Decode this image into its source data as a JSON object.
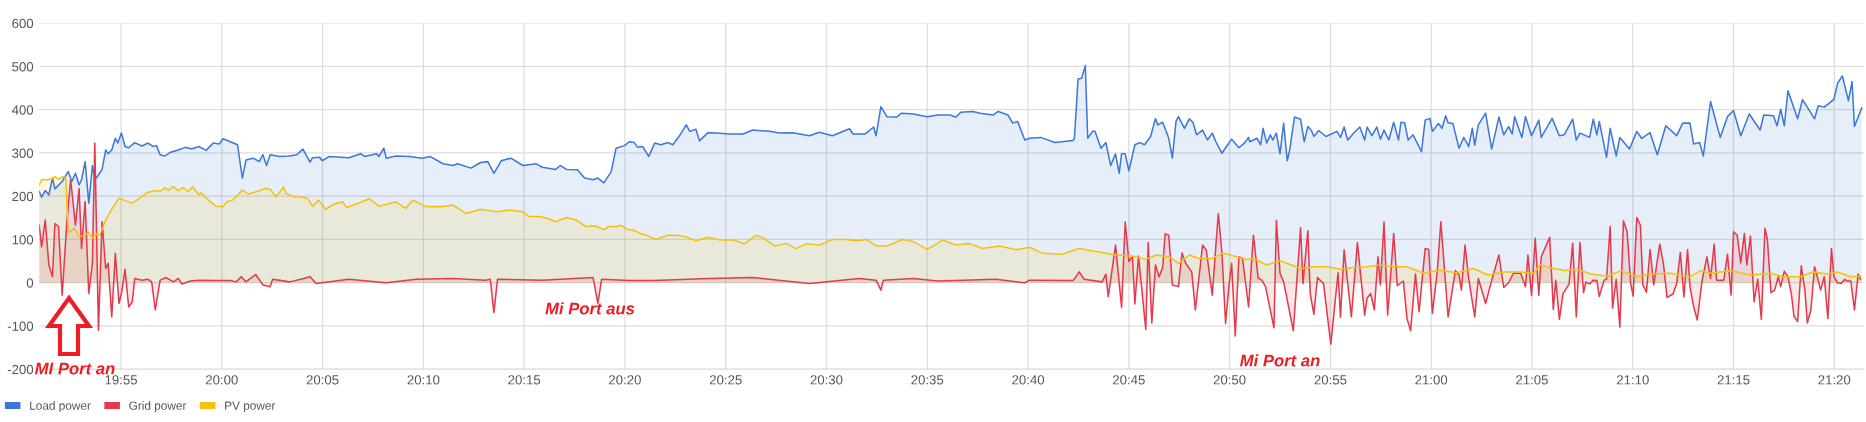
{
  "chart_data": {
    "type": "area",
    "xlim": [
      19.849,
      21.358
    ],
    "ylim": [
      -200,
      600
    ],
    "yticks": [
      -200,
      -100,
      0,
      100,
      200,
      300,
      400,
      500,
      600
    ],
    "xticks": [
      {
        "value": 19.9167,
        "label": "19:55"
      },
      {
        "value": 20,
        "label": "20:00"
      },
      {
        "value": 20.0833,
        "label": "20:05"
      },
      {
        "value": 20.1667,
        "label": "20:10"
      },
      {
        "value": 20.25,
        "label": "20:15"
      },
      {
        "value": 20.3333,
        "label": "20:20"
      },
      {
        "value": 20.4167,
        "label": "20:25"
      },
      {
        "value": 20.5,
        "label": "20:30"
      },
      {
        "value": 20.5833,
        "label": "20:35"
      },
      {
        "value": 20.6667,
        "label": "20:40"
      },
      {
        "value": 20.75,
        "label": "20:45"
      },
      {
        "value": 20.8333,
        "label": "20:50"
      },
      {
        "value": 20.9167,
        "label": "20:55"
      },
      {
        "value": 21,
        "label": "21:00"
      },
      {
        "value": 21.0833,
        "label": "21:05"
      },
      {
        "value": 21.1667,
        "label": "21:10"
      },
      {
        "value": 21.25,
        "label": "21:15"
      },
      {
        "value": 21.3333,
        "label": "21:20"
      }
    ],
    "grid": true,
    "legend": "bottom left",
    "marker": "none",
    "line_style": "solid",
    "annotations": [
      "MI Port an",
      "Mi Port aus",
      "Mi Port an"
    ],
    "series": [
      {
        "name": "Load power",
        "color": "#3c78d8",
        "x": [
          19.849,
          19.851,
          19.854,
          19.857,
          19.86,
          19.862,
          19.868,
          19.872,
          19.873,
          19.876,
          19.879,
          19.882,
          19.884,
          19.887,
          19.89,
          19.893,
          19.895,
          19.898,
          19.901,
          19.904,
          19.906,
          19.909,
          19.912,
          19.914,
          19.917,
          19.92,
          19.923,
          19.928,
          19.934,
          19.939,
          19.943,
          19.946,
          19.949,
          19.953,
          19.957,
          19.964,
          19.97,
          19.975,
          19.981,
          19.987,
          19.993,
          19.998,
          20.001,
          20.007,
          20.013,
          20.017,
          20.02,
          20.026,
          20.031,
          20.034,
          20.037,
          20.04,
          20.048,
          20.056,
          20.062,
          20.067,
          20.073,
          20.075,
          20.081,
          20.083,
          20.089,
          20.105,
          20.115,
          20.118,
          20.128,
          20.13,
          20.134,
          20.136,
          20.144,
          20.155,
          20.166,
          20.172,
          20.183,
          20.191,
          20.195,
          20.206,
          20.214,
          20.22,
          20.225,
          20.231,
          20.239,
          20.249,
          20.26,
          20.265,
          20.276,
          20.28,
          20.285,
          20.294,
          20.3,
          20.307,
          20.311,
          20.316,
          20.322,
          20.326,
          20.333,
          20.337,
          20.341,
          20.344,
          20.348,
          20.353,
          20.358,
          20.363,
          20.369,
          20.373,
          20.379,
          20.384,
          20.387,
          20.392,
          20.395,
          20.402,
          20.409,
          20.42,
          20.431,
          20.439,
          20.453,
          20.461,
          20.472,
          20.486,
          20.494,
          20.505,
          20.519,
          20.522,
          20.532,
          20.539,
          20.541,
          20.545,
          20.55,
          20.558,
          20.562,
          20.572,
          20.583,
          20.592,
          20.602,
          20.607,
          20.611,
          20.621,
          20.627,
          20.638,
          20.642,
          20.65,
          20.654,
          20.658,
          20.664,
          20.668,
          20.677,
          20.689,
          20.704,
          20.705,
          20.708,
          20.711,
          20.714,
          20.716,
          20.72,
          20.722,
          20.727,
          20.731,
          20.735,
          20.739,
          20.742,
          20.744,
          20.747,
          20.75,
          20.755,
          20.759,
          20.763,
          20.768,
          20.772,
          20.774,
          20.778,
          20.783,
          20.786,
          20.789,
          20.791,
          20.796,
          20.8,
          20.803,
          20.806,
          20.811,
          20.815,
          20.819,
          20.822,
          20.827,
          20.83,
          20.835,
          20.841,
          20.846,
          20.849,
          20.85,
          20.856,
          20.859,
          20.861,
          20.864,
          20.867,
          20.869,
          20.872,
          20.875,
          20.878,
          20.881,
          20.883,
          20.887,
          20.892,
          20.895,
          20.898,
          20.901,
          20.903,
          20.907,
          20.913,
          20.922,
          20.925,
          20.928,
          20.931,
          20.936,
          20.941,
          20.945,
          20.947,
          20.951,
          20.955,
          20.958,
          20.961,
          20.965,
          20.969,
          20.973,
          20.975,
          20.978,
          20.981,
          20.985,
          20.992,
          20.995,
          20.999,
          21.001,
          21.006,
          21.009,
          21.012,
          21.014,
          21.018,
          21.023,
          21.027,
          21.031,
          21.034,
          21.036,
          21.039,
          21.045,
          21.05,
          21.056,
          21.06,
          21.064,
          21.067,
          21.069,
          21.075,
          21.078,
          21.083,
          21.089,
          21.091,
          21.1,
          21.106,
          21.11,
          21.117,
          21.12,
          21.123,
          21.131,
          21.134,
          21.137,
          21.139,
          21.145,
          21.148,
          21.153,
          21.156,
          21.164,
          21.17,
          21.174,
          21.181,
          21.187,
          21.194,
          21.203,
          21.208,
          21.214,
          21.217,
          21.222,
          21.225,
          21.231,
          21.239,
          21.245,
          21.25,
          21.256,
          21.263,
          21.272,
          21.275,
          21.283,
          21.286,
          21.289,
          21.292,
          21.295,
          21.303,
          21.307,
          21.311,
          21.317,
          21.32,
          21.325,
          21.333,
          21.336,
          21.34,
          21.345,
          21.348,
          21.35,
          21.356
        ],
        "values": [
          211,
          198,
          213,
          203,
          242,
          217,
          234,
          253,
          257,
          234,
          253,
          226,
          238,
          280,
          184,
          271,
          238,
          249,
          262,
          307,
          298,
          307,
          334,
          323,
          346,
          315,
          312,
          324,
          316,
          323,
          315,
          317,
          296,
          293,
          301,
          307,
          313,
          309,
          315,
          306,
          323,
          321,
          333,
          326,
          319,
          242,
          284,
          288,
          280,
          296,
          271,
          296,
          292,
          293,
          296,
          309,
          279,
          289,
          290,
          282,
          292,
          289,
          298,
          292,
          298,
          292,
          311,
          288,
          293,
          292,
          288,
          292,
          275,
          271,
          275,
          265,
          278,
          280,
          253,
          282,
          288,
          271,
          275,
          267,
          262,
          271,
          262,
          261,
          242,
          238,
          242,
          231,
          257,
          311,
          317,
          326,
          324,
          313,
          315,
          292,
          323,
          319,
          324,
          319,
          342,
          365,
          350,
          355,
          328,
          347,
          346,
          344,
          344,
          353,
          350,
          346,
          347,
          340,
          348,
          340,
          356,
          344,
          344,
          360,
          340,
          407,
          384,
          383,
          392,
          390,
          384,
          388,
          388,
          383,
          394,
          396,
          392,
          388,
          396,
          388,
          369,
          373,
          330,
          334,
          336,
          324,
          329,
          334,
          471,
          473,
          502,
          334,
          350,
          350,
          311,
          324,
          271,
          298,
          253,
          298,
          298,
          259,
          319,
          324,
          319,
          338,
          379,
          365,
          371,
          334,
          288,
          373,
          384,
          357,
          379,
          371,
          342,
          353,
          330,
          346,
          326,
          299,
          312,
          332,
          312,
          324,
          336,
          326,
          334,
          319,
          357,
          323,
          342,
          330,
          346,
          298,
          369,
          282,
          307,
          383,
          378,
          326,
          361,
          352,
          338,
          352,
          338,
          350,
          336,
          360,
          330,
          346,
          360,
          330,
          360,
          340,
          360,
          332,
          353,
          330,
          371,
          330,
          371,
          370,
          330,
          342,
          303,
          376,
          380,
          350,
          368,
          357,
          386,
          370,
          368,
          311,
          336,
          315,
          357,
          318,
          365,
          392,
          309,
          383,
          342,
          361,
          344,
          384,
          336,
          384,
          340,
          376,
          336,
          380,
          340,
          342,
          378,
          330,
          346,
          336,
          378,
          342,
          373,
          290,
          357,
          293,
          336,
          309,
          350,
          334,
          347,
          296,
          363,
          340,
          369,
          369,
          321,
          324,
          293,
          419,
          336,
          384,
          398,
          340,
          390,
          353,
          388,
          386,
          363,
          401,
          363,
          444,
          379,
          423,
          406,
          379,
          409,
          406,
          424,
          461,
          478,
          421,
          465,
          361,
          404
        ]
      },
      {
        "name": "Grid power",
        "color": "#e53a4b",
        "x": [
          19.849,
          19.851,
          19.854,
          19.857,
          19.86,
          19.862,
          19.865,
          19.868,
          19.872,
          19.875,
          19.879,
          19.882,
          19.884,
          19.887,
          19.89,
          19.893,
          19.895,
          19.898,
          19.901,
          19.904,
          19.906,
          19.909,
          19.912,
          19.915,
          19.917,
          19.92,
          19.923,
          19.926,
          19.928,
          19.934,
          19.939,
          19.942,
          19.945,
          19.949,
          19.954,
          19.96,
          19.964,
          19.967,
          19.974,
          19.982,
          19.993,
          20.007,
          20.012,
          20.016,
          20.02,
          20.028,
          20.034,
          20.04,
          20.042,
          20.056,
          20.067,
          20.073,
          20.078,
          20.105,
          20.136,
          20.161,
          20.191,
          20.218,
          20.222,
          20.225,
          20.228,
          20.265,
          20.307,
          20.311,
          20.314,
          20.337,
          20.357,
          20.403,
          20.439,
          20.486,
          20.527,
          20.541,
          20.545,
          20.547,
          20.572,
          20.592,
          20.607,
          20.64,
          20.664,
          20.668,
          20.704,
          20.709,
          20.713,
          20.728,
          20.731,
          20.733,
          20.739,
          20.744,
          20.747,
          20.75,
          20.753,
          20.755,
          20.758,
          20.764,
          20.766,
          20.769,
          20.772,
          20.775,
          20.778,
          20.78,
          20.783,
          20.786,
          20.791,
          20.794,
          20.797,
          20.802,
          20.805,
          20.811,
          20.814,
          20.819,
          20.822,
          20.824,
          20.827,
          20.83,
          20.833,
          20.835,
          20.838,
          20.841,
          20.844,
          20.849,
          20.853,
          20.857,
          20.86,
          20.863,
          20.87,
          20.872,
          20.875,
          20.878,
          20.886,
          20.892,
          20.894,
          20.898,
          20.9,
          20.903,
          20.906,
          20.911,
          20.917,
          20.923,
          20.925,
          20.928,
          20.934,
          20.939,
          20.945,
          20.947,
          20.95,
          20.953,
          20.956,
          20.958,
          20.961,
          20.964,
          20.967,
          20.969,
          20.972,
          20.977,
          20.98,
          20.983,
          20.987,
          20.99,
          20.995,
          20.998,
          21.001,
          21.005,
          21.008,
          21.014,
          21.02,
          21.023,
          21.025,
          21.028,
          21.031,
          21.036,
          21.039,
          21.045,
          21.05,
          21.056,
          21.06,
          21.064,
          21.068,
          21.074,
          21.078,
          21.08,
          21.083,
          21.086,
          21.089,
          21.091,
          21.098,
          21.101,
          21.103,
          21.106,
          21.109,
          21.114,
          21.117,
          21.12,
          21.123,
          21.126,
          21.128,
          21.131,
          21.134,
          21.137,
          21.139,
          21.143,
          21.145,
          21.148,
          21.15,
          21.153,
          21.156,
          21.159,
          21.162,
          21.165,
          21.167,
          21.17,
          21.173,
          21.175,
          21.178,
          21.181,
          21.184,
          21.189,
          21.192,
          21.195,
          21.2,
          21.203,
          21.206,
          21.209,
          21.212,
          21.214,
          21.217,
          21.22,
          21.224,
          21.228,
          21.231,
          21.234,
          21.236,
          21.242,
          21.245,
          21.248,
          21.25,
          21.253,
          21.256,
          21.259,
          21.261,
          21.264,
          21.267,
          21.27,
          21.273,
          21.276,
          21.278,
          21.281,
          21.284,
          21.287,
          21.289,
          21.292,
          21.295,
          21.298,
          21.3,
          21.303,
          21.306,
          21.309,
          21.311,
          21.314,
          21.317,
          21.32,
          21.322,
          21.325,
          21.328,
          21.331,
          21.333,
          21.336,
          21.339,
          21.342,
          21.344,
          21.347,
          21.35,
          21.353,
          21.355
        ],
        "values": [
          133,
          83,
          145,
          41,
          14,
          137,
          130,
          -29,
          145,
          238,
          133,
          218,
          79,
          188,
          -25,
          45,
          323,
          -110,
          141,
          33,
          45,
          -79,
          68,
          -48,
          -25,
          31,
          -56,
          -44,
          10,
          6,
          8,
          2,
          -63,
          6,
          12,
          2,
          10,
          -3,
          4,
          6,
          5,
          5,
          2,
          14,
          2,
          19,
          -5,
          -9,
          8,
          2,
          9,
          14,
          -2,
          8,
          0,
          8,
          10,
          6,
          8,
          -69,
          8,
          6,
          12,
          -48,
          8,
          5,
          5,
          10,
          12,
          -2,
          10,
          6,
          -17,
          6,
          10,
          4,
          5,
          8,
          0,
          6,
          5,
          25,
          8,
          2,
          20,
          -32,
          87,
          -57,
          141,
          49,
          60,
          -49,
          62,
          -108,
          93,
          -93,
          41,
          14,
          35,
          113,
          110,
          -5,
          -9,
          69,
          45,
          25,
          -63,
          87,
          76,
          -29,
          87,
          160,
          68,
          -94,
          0,
          45,
          -123,
          60,
          56,
          -56,
          110,
          10,
          6,
          -9,
          -104,
          144,
          22,
          2,
          -111,
          127,
          -2,
          120,
          -25,
          -73,
          12,
          -2,
          -142,
          23,
          -80,
          76,
          -79,
          93,
          -75,
          -36,
          -25,
          -63,
          60,
          -5,
          141,
          -75,
          37,
          114,
          -7,
          4,
          -83,
          -111,
          20,
          -67,
          79,
          77,
          -71,
          25,
          141,
          -79,
          28,
          18,
          -17,
          87,
          10,
          -79,
          10,
          -48,
          5,
          64,
          -11,
          0,
          22,
          22,
          -9,
          64,
          -30,
          103,
          -29,
          60,
          105,
          -62,
          6,
          -85,
          -25,
          -3,
          91,
          -79,
          93,
          -23,
          2,
          -3,
          6,
          5,
          -32,
          6,
          8,
          130,
          -59,
          8,
          -103,
          143,
          118,
          -2,
          -31,
          151,
          133,
          -5,
          -22,
          77,
          -5,
          89,
          45,
          -34,
          -26,
          -2,
          70,
          -33,
          77,
          -9,
          -55,
          -86,
          5,
          60,
          10,
          89,
          6,
          6,
          66,
          -29,
          118,
          110,
          46,
          114,
          41,
          108,
          -44,
          8,
          -85,
          126,
          100,
          -23,
          -17,
          14,
          -9,
          27,
          14,
          -29,
          -77,
          -90,
          39,
          -17,
          -93,
          -63,
          37,
          6,
          -17,
          14,
          -83,
          79,
          14,
          0,
          -2,
          8,
          4,
          4,
          -63,
          20,
          8
        ]
      },
      {
        "name": "PV power",
        "color": "#f4c20d",
        "x": [
          19.849,
          19.851,
          19.855,
          19.86,
          19.862,
          19.865,
          19.869,
          19.871,
          19.873,
          19.875,
          19.878,
          19.882,
          19.887,
          19.89,
          19.893,
          19.897,
          19.899,
          19.904,
          19.909,
          19.915,
          19.919,
          19.926,
          19.932,
          19.938,
          19.945,
          19.949,
          19.953,
          19.956,
          19.96,
          19.964,
          19.968,
          19.972,
          19.976,
          19.981,
          19.983,
          19.989,
          19.995,
          20.001,
          20.004,
          20.009,
          20.017,
          20.022,
          20.029,
          20.036,
          20.04,
          20.045,
          20.051,
          20.053,
          20.059,
          20.066,
          20.071,
          20.075,
          20.08,
          20.086,
          20.093,
          20.1,
          20.103,
          20.114,
          20.122,
          20.13,
          20.144,
          20.152,
          20.158,
          20.169,
          20.183,
          20.191,
          20.202,
          20.214,
          20.227,
          20.238,
          20.249,
          20.254,
          20.263,
          20.269,
          20.276,
          20.285,
          20.293,
          20.301,
          20.309,
          20.316,
          20.32,
          20.326,
          20.33,
          20.336,
          20.34,
          20.346,
          20.351,
          20.359,
          20.369,
          20.377,
          20.384,
          20.392,
          20.402,
          20.412,
          20.423,
          20.432,
          20.442,
          20.448,
          20.457,
          20.467,
          20.475,
          20.483,
          20.494,
          20.505,
          20.516,
          20.525,
          20.533,
          20.541,
          20.55,
          20.563,
          20.572,
          20.583,
          20.592,
          20.596,
          20.607,
          20.618,
          20.629,
          20.643,
          20.657,
          20.668,
          20.679,
          20.695,
          20.709,
          20.723,
          20.731,
          20.739,
          20.753,
          20.764,
          20.773,
          20.784,
          20.791,
          20.8,
          20.808,
          20.819,
          20.828,
          20.839,
          20.848,
          20.853,
          20.864,
          20.875,
          20.892,
          20.903,
          20.914,
          20.925,
          20.936,
          20.947,
          20.958,
          20.969,
          20.98,
          20.994,
          21.007,
          21.021,
          21.035,
          21.047,
          21.06,
          21.074,
          21.085,
          21.09,
          21.101,
          21.11,
          21.121,
          21.132,
          21.146,
          21.157,
          21.17,
          21.181,
          21.198,
          21.214,
          21.223,
          21.231,
          21.248,
          21.264,
          21.281,
          21.291,
          21.305,
          21.316,
          21.327,
          21.336,
          21.347,
          21.355
        ],
        "values": [
          226,
          238,
          238,
          240,
          245,
          240,
          245,
          242,
          118,
          118,
          127,
          106,
          110,
          116,
          103,
          114,
          110,
          145,
          170,
          195,
          191,
          184,
          195,
          208,
          213,
          211,
          220,
          214,
          222,
          213,
          220,
          211,
          222,
          203,
          208,
          191,
          177,
          176,
          187,
          191,
          214,
          205,
          211,
          218,
          216,
          199,
          221,
          207,
          199,
          198,
          195,
          177,
          191,
          170,
          182,
          187,
          174,
          185,
          194,
          177,
          187,
          172,
          191,
          176,
          176,
          180,
          160,
          170,
          164,
          168,
          164,
          153,
          153,
          149,
          141,
          151,
          145,
          130,
          131,
          123,
          130,
          130,
          133,
          122,
          122,
          114,
          110,
          100,
          110,
          110,
          106,
          97,
          105,
          99,
          99,
          90,
          110,
          103,
          85,
          91,
          79,
          90,
          87,
          100,
          100,
          97,
          100,
          85,
          85,
          100,
          95,
          77,
          91,
          99,
          87,
          91,
          79,
          85,
          76,
          82,
          68,
          66,
          79,
          72,
          68,
          64,
          62,
          54,
          64,
          59,
          45,
          64,
          56,
          56,
          69,
          60,
          54,
          56,
          41,
          51,
          33,
          37,
          37,
          31,
          35,
          37,
          41,
          37,
          37,
          22,
          29,
          23,
          33,
          18,
          25,
          25,
          22,
          41,
          33,
          29,
          31,
          20,
          15,
          28,
          14,
          20,
          22,
          14,
          28,
          22,
          28,
          18,
          22,
          14,
          14,
          25,
          20,
          25,
          14,
          15
        ]
      }
    ]
  }
}
